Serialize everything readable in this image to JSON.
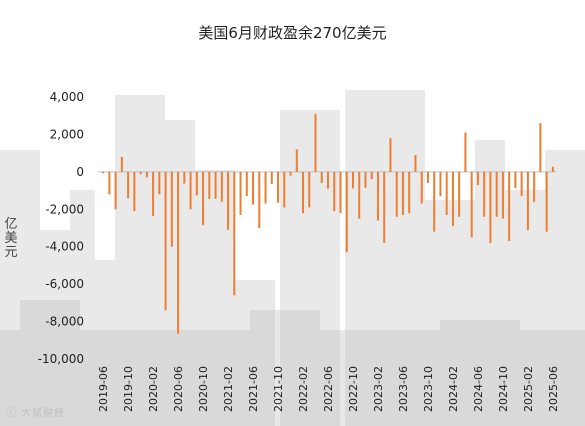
{
  "chart_data": {
    "type": "bar",
    "title": "美国6月财政盈余270亿美元",
    "ylabel": "亿美元",
    "xlabel": "",
    "ylim": [
      -10000,
      4000
    ],
    "yticks": [
      4000,
      2000,
      0,
      -2000,
      -4000,
      -6000,
      -8000,
      -10000
    ],
    "ytick_labels": [
      "4,000",
      "2,000",
      "0",
      "-2,000",
      "-4,000",
      "-6,000",
      "-8,000",
      "-10,000"
    ],
    "xtick_labels": [
      "2019-06",
      "2019-10",
      "2020-02",
      "2020-06",
      "2020-10",
      "2021-02",
      "2021-06",
      "2021-10",
      "2022-02",
      "2022-06",
      "2022-10",
      "2023-02",
      "2023-06",
      "2023-10",
      "2024-02",
      "2024-06",
      "2024-10",
      "2025-02",
      "2025-06"
    ],
    "bar_color": "#ED7D31",
    "grid": false,
    "categories": [
      "2019-06",
      "2019-07",
      "2019-08",
      "2019-09",
      "2019-10",
      "2019-11",
      "2019-12",
      "2020-01",
      "2020-02",
      "2020-03",
      "2020-04",
      "2020-05",
      "2020-06",
      "2020-07",
      "2020-08",
      "2020-09",
      "2020-10",
      "2020-11",
      "2020-12",
      "2021-01",
      "2021-02",
      "2021-03",
      "2021-04",
      "2021-05",
      "2021-06",
      "2021-07",
      "2021-08",
      "2021-09",
      "2021-10",
      "2021-11",
      "2021-12",
      "2022-01",
      "2022-02",
      "2022-03",
      "2022-04",
      "2022-05",
      "2022-06",
      "2022-07",
      "2022-08",
      "2022-09",
      "2022-10",
      "2022-11",
      "2022-12",
      "2023-01",
      "2023-02",
      "2023-03",
      "2023-04",
      "2023-05",
      "2023-06",
      "2023-07",
      "2023-08",
      "2023-09",
      "2023-10",
      "2023-11",
      "2023-12",
      "2024-01",
      "2024-02",
      "2024-03",
      "2024-04",
      "2024-05",
      "2024-06",
      "2024-07",
      "2024-08",
      "2024-09",
      "2024-10",
      "2024-11",
      "2024-12",
      "2025-01",
      "2025-02",
      "2025-03",
      "2025-04",
      "2025-05",
      "2025-06"
    ],
    "values": [
      -80,
      -1200,
      -2000,
      800,
      -1400,
      -2100,
      -130,
      -300,
      -2350,
      -1200,
      -7400,
      -4000,
      -8650,
      -630,
      -2000,
      -1250,
      -2850,
      -1450,
      -1440,
      -1600,
      -3100,
      -6600,
      -2300,
      -1300,
      -1750,
      -3000,
      -1700,
      -650,
      -1650,
      -1900,
      -200,
      1200,
      -2200,
      -1900,
      3100,
      -600,
      -900,
      -2100,
      -2200,
      -4300,
      -880,
      -2500,
      -850,
      -390,
      -2600,
      -3800,
      1800,
      -2400,
      -2300,
      -2200,
      900,
      -1700,
      -600,
      -3200,
      -1300,
      -2300,
      -2900,
      -2400,
      2100,
      -3500,
      -700,
      -2400,
      -3800,
      -2400,
      -2500,
      -3700,
      -870,
      -1300,
      -3100,
      -1600,
      2600,
      -3200,
      270
    ]
  },
  "watermark": "ⓘ 大鼠财经"
}
